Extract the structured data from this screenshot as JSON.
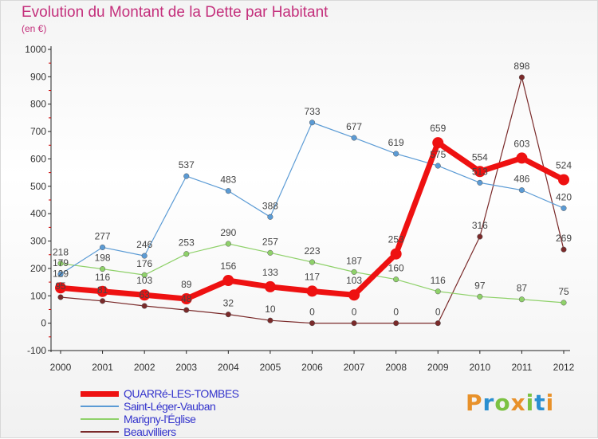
{
  "header": {
    "title": "Evolution du Montant de la Dette par Habitant",
    "subtitle": "(en €)"
  },
  "logo": {
    "text": "Proxiti",
    "colors": [
      "#e8912a",
      "#2a8fd0",
      "#7cc242",
      "#e8912a",
      "#7cc242",
      "#2a8fd0",
      "#e8912a"
    ]
  },
  "chart_data": {
    "type": "line",
    "title": "Evolution du Montant de la Dette par Habitant",
    "subtitle": "(en €)",
    "x": [
      "2000",
      "2001",
      "2002",
      "2003",
      "2004",
      "2005",
      "2006",
      "2007",
      "2008",
      "2009",
      "2010",
      "2011",
      "2012"
    ],
    "ylim": [
      -100,
      1000
    ],
    "yticks": [
      -100,
      0,
      100,
      200,
      300,
      400,
      500,
      600,
      700,
      800,
      900,
      1000
    ],
    "grid": false,
    "legend_position": "bottom-left",
    "series": [
      {
        "name": "QUARRé-LES-TOMBES",
        "color": "#ee1111",
        "values": [
          129,
          116,
          103,
          89,
          156,
          133,
          117,
          103,
          253,
          659,
          554,
          603,
          524
        ]
      },
      {
        "name": "Saint-Léger-Vauban",
        "color": "#5b9bd5",
        "values": [
          179,
          277,
          246,
          537,
          483,
          388,
          733,
          677,
          619,
          575,
          513,
          486,
          420
        ]
      },
      {
        "name": "Marigny-l'Église",
        "color": "#8fd16a",
        "values": [
          218,
          198,
          176,
          253,
          290,
          257,
          223,
          187,
          160,
          116,
          97,
          87,
          75
        ]
      },
      {
        "name": "Beauvilliers",
        "color": "#7a2a2a",
        "values": [
          95,
          81,
          63,
          48,
          32,
          10,
          0,
          0,
          0,
          0,
          316,
          898,
          269
        ]
      }
    ]
  }
}
